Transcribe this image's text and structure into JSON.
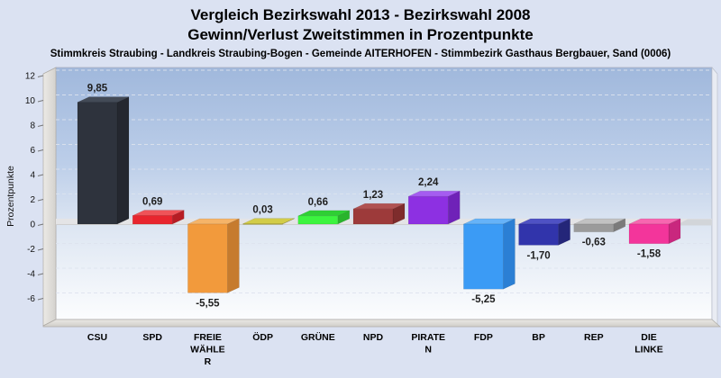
{
  "header": {
    "title_line1": "Vergleich Bezirkswahl 2013 - Bezirkswahl 2008",
    "title_line2": "Gewinn/Verlust Zweitstimmen in Prozentpunkte",
    "subtitle": "Stimmkreis Straubing - Landkreis Straubing-Bogen - Gemeinde AITERHOFEN - Stimmbezirk Gasthaus Bergbauer, Sand (0006)"
  },
  "colors": {
    "page_bg": "#dbe2f2",
    "wall_gradient": [
      "#a0b8dc",
      "#bccee9",
      "#dce5f2",
      "#fcfdfe"
    ],
    "wall_side": [
      "#eceae6",
      "#d4d2ce"
    ],
    "floor": [
      "#eae8e4",
      "#d0cec9"
    ],
    "zero_band": "#e4e4e6",
    "zero_band_edge": "#cfcfcf",
    "zero_shadow": "#d2d5d9",
    "gridline": "#dde3ee",
    "axis_text": "#111111",
    "value_text": "#1f1f1f",
    "category_text": "#000000"
  },
  "chart_data": {
    "type": "bar",
    "title": "Vergleich Bezirkswahl 2013 - Bezirkswahl 2008",
    "subtitle": "Gewinn/Verlust Zweitstimmen in Prozentpunkte",
    "xlabel": "",
    "ylabel": "Prozentpunkte",
    "ylim": [
      -7.5,
      12
    ],
    "y_ticks": [
      12,
      10,
      8,
      6,
      4,
      2,
      0,
      -2,
      -4,
      -6
    ],
    "grid": "dashed horizontal",
    "legend": "none",
    "categories": [
      "CSU",
      "SPD",
      "FREIE WÄHLER",
      "ÖDP",
      "GRÜNE",
      "NPD",
      "PIRATEN",
      "FDP",
      "BP",
      "REP",
      "DIE LINKE"
    ],
    "category_label_lines": [
      [
        "CSU"
      ],
      [
        "SPD"
      ],
      [
        "FREIE",
        "WÄHLE",
        "R"
      ],
      [
        "ÖDP"
      ],
      [
        "GRÜNE"
      ],
      [
        "NPD"
      ],
      [
        "PIRATE",
        "N"
      ],
      [
        "FDP"
      ],
      [
        "BP"
      ],
      [
        "REP"
      ],
      [
        "DIE",
        "LINKE"
      ]
    ],
    "values": [
      9.85,
      0.69,
      -5.55,
      0.03,
      0.66,
      1.23,
      2.24,
      -5.25,
      -1.7,
      -0.63,
      -1.58
    ],
    "value_labels": [
      "9,85",
      "0,69",
      "-5,55",
      "0,03",
      "0,66",
      "1,23",
      "2,24",
      "-5,25",
      "-1,70",
      "-0,63",
      "-1,58"
    ],
    "bar_colors": [
      {
        "front": "#2e333d",
        "top": "#434a56",
        "side": "#24272f"
      },
      {
        "front": "#e8252e",
        "top": "#ef5358",
        "side": "#b71d24"
      },
      {
        "front": "#f29a3c",
        "top": "#f5b469",
        "side": "#c67b2e"
      },
      {
        "front": "#b4ae2e",
        "top": "#d2cc48",
        "side": "#938e24"
      },
      {
        "front": "#3cf43f",
        "top": "#2fcf34",
        "side": "#29b42c"
      },
      {
        "front": "#9d3a3a",
        "top": "#b05252",
        "side": "#7e2c2c"
      },
      {
        "front": "#8d30e2",
        "top": "#a55cf0",
        "side": "#6f22b8"
      },
      {
        "front": "#3b9bf5",
        "top": "#66b3f8",
        "side": "#2b7fd4"
      },
      {
        "front": "#3134ab",
        "top": "#4f52c4",
        "side": "#242679"
      },
      {
        "front": "#9b9b9b",
        "top": "#c2c2c2",
        "side": "#7b7b7b"
      },
      {
        "front": "#f3359b",
        "top": "#f767b0",
        "side": "#c9277e"
      }
    ]
  }
}
